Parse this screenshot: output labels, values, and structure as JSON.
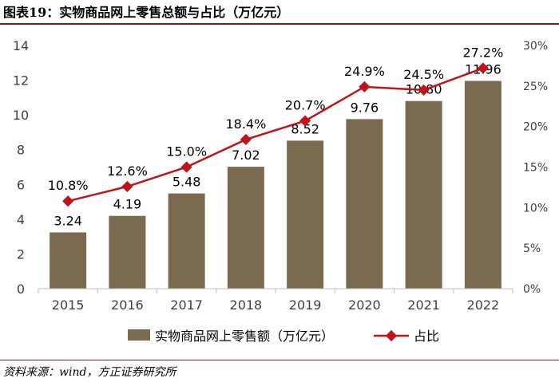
{
  "title": "图表19：实物商品网上零售总额与占比（万亿元）",
  "source": "资料来源：wind，方正证券研究所",
  "colors": {
    "bar": "#7a6a50",
    "line": "#c0141c",
    "rule": "#8b1a1a"
  },
  "chart_data": {
    "type": "bar",
    "categories": [
      "2015",
      "2016",
      "2017",
      "2018",
      "2019",
      "2020",
      "2021",
      "2022"
    ],
    "series": [
      {
        "name": "实物商品网上零售额（万亿元）",
        "type": "bar",
        "axis": "left",
        "values": [
          3.24,
          4.19,
          5.48,
          7.02,
          8.52,
          9.76,
          10.8,
          11.96
        ],
        "labels": [
          "3.24",
          "4.19",
          "5.48",
          "7.02",
          "8.52",
          "9.76",
          "10.80",
          "11.96"
        ]
      },
      {
        "name": "占比",
        "type": "line",
        "axis": "right",
        "values": [
          10.8,
          12.6,
          15.0,
          18.4,
          20.7,
          24.9,
          24.5,
          27.2
        ],
        "labels": [
          "10.8%",
          "12.6%",
          "15.0%",
          "18.4%",
          "20.7%",
          "24.9%",
          "24.5%",
          "27.2%"
        ]
      }
    ],
    "ylim": [
      0,
      14
    ],
    "yticks": [
      "0",
      "2",
      "4",
      "6",
      "8",
      "10",
      "12",
      "14"
    ],
    "y2lim": [
      0,
      30
    ],
    "y2ticks": [
      "0%",
      "5%",
      "10%",
      "15%",
      "20%",
      "25%",
      "30%"
    ],
    "grid": false,
    "legend_position": "bottom"
  }
}
